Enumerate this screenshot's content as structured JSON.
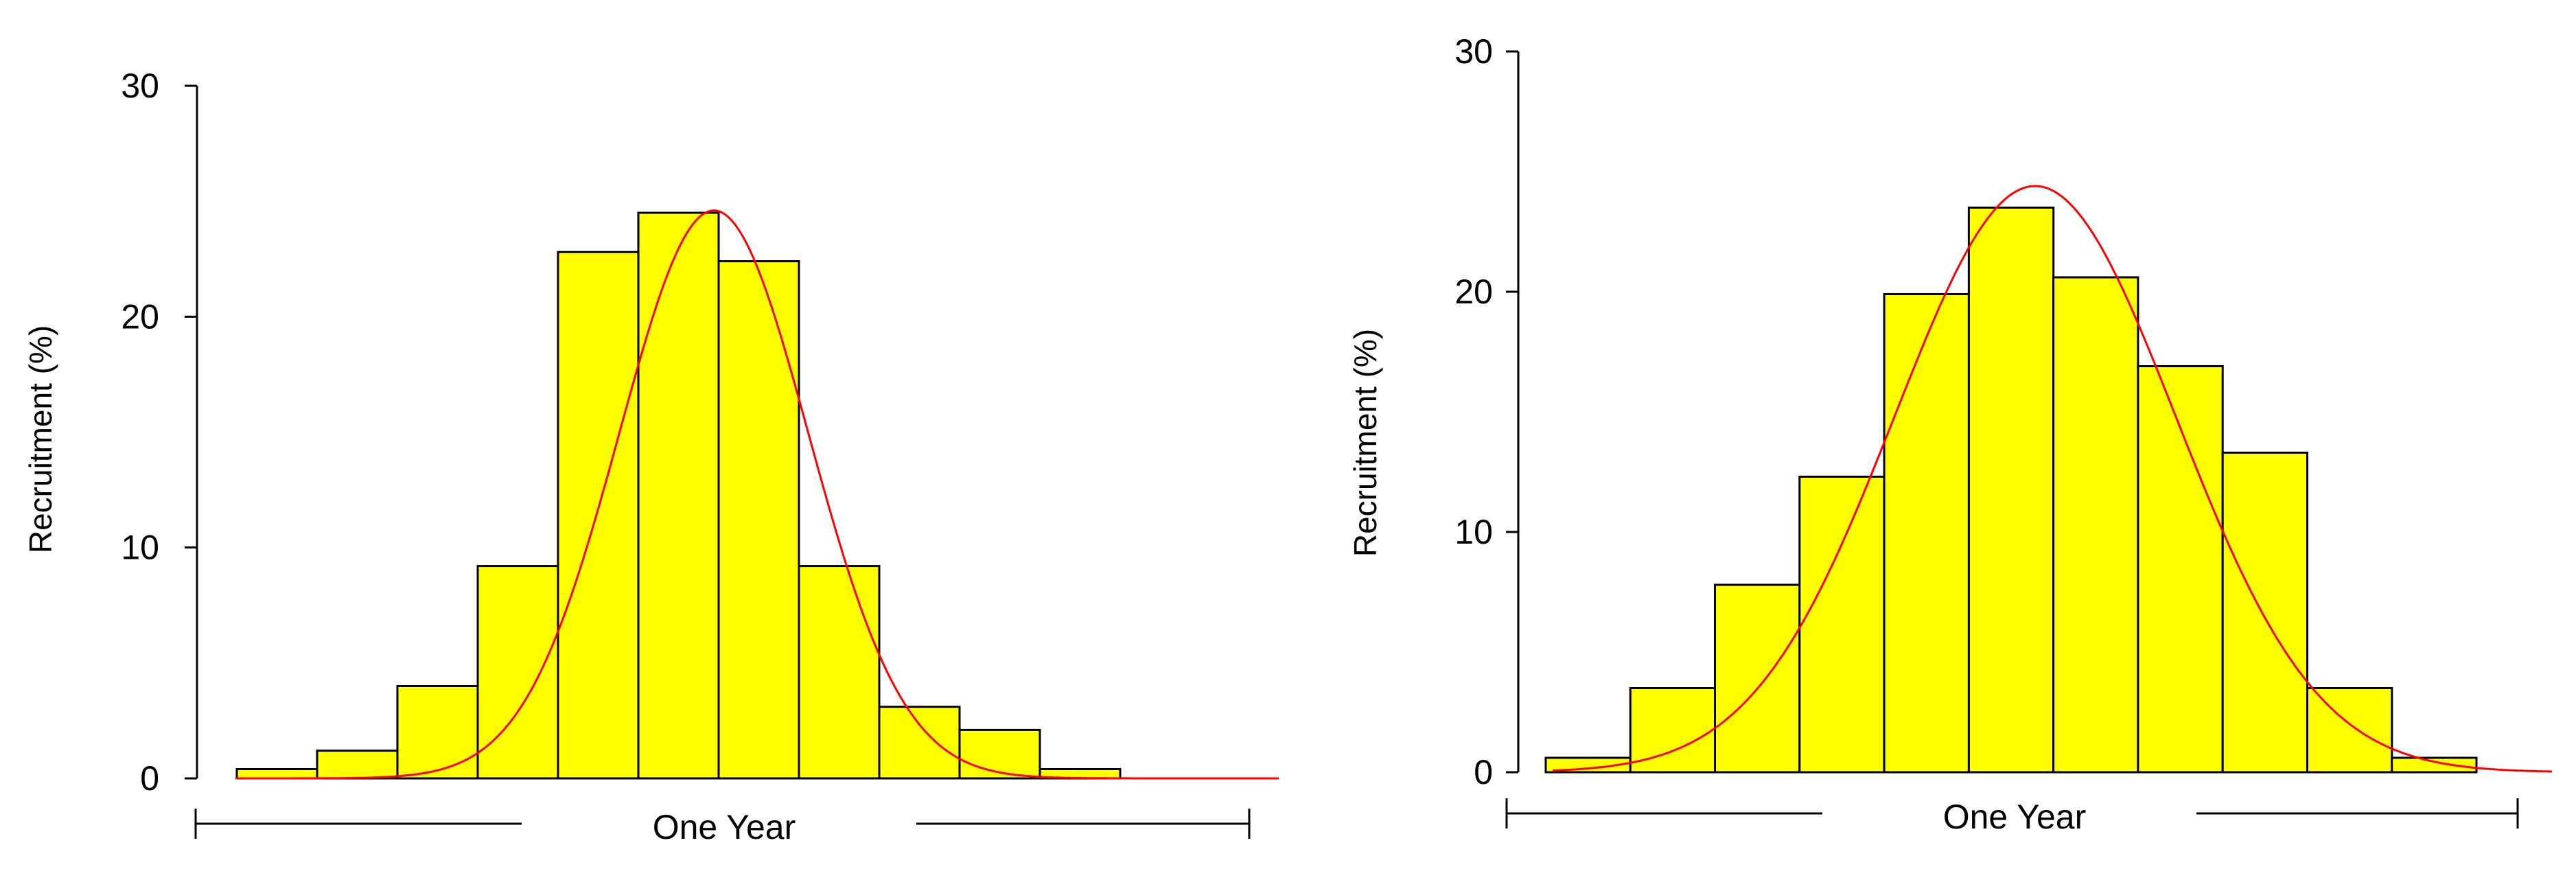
{
  "chart_data": [
    {
      "type": "bar",
      "ylabel": "Recruitment (%)",
      "xlabel": "One Year",
      "ylim": [
        0,
        30
      ],
      "yticks": [
        0,
        10,
        20,
        30
      ],
      "values": [
        0.4,
        1.2,
        4.0,
        9.2,
        22.8,
        24.5,
        22.4,
        9.2,
        3.1,
        2.1,
        0.4
      ],
      "fit_curve": "normal",
      "fit_peak": 24.6,
      "colors": {
        "bar": "#ffff00",
        "bar_edge": "#000000",
        "curve": "#ff0000"
      }
    },
    {
      "type": "bar",
      "ylabel": "Recruitment (%)",
      "xlabel": "One Year",
      "ylim": [
        0,
        30
      ],
      "yticks": [
        0,
        10,
        20,
        30
      ],
      "values": [
        0.6,
        3.5,
        7.8,
        12.3,
        19.9,
        23.5,
        20.6,
        16.9,
        13.3,
        3.5,
        0.6
      ],
      "fit_curve": "normal",
      "fit_peak": 24.4,
      "colors": {
        "bar": "#ffff00",
        "bar_edge": "#000000",
        "curve": "#ff0000"
      }
    }
  ]
}
